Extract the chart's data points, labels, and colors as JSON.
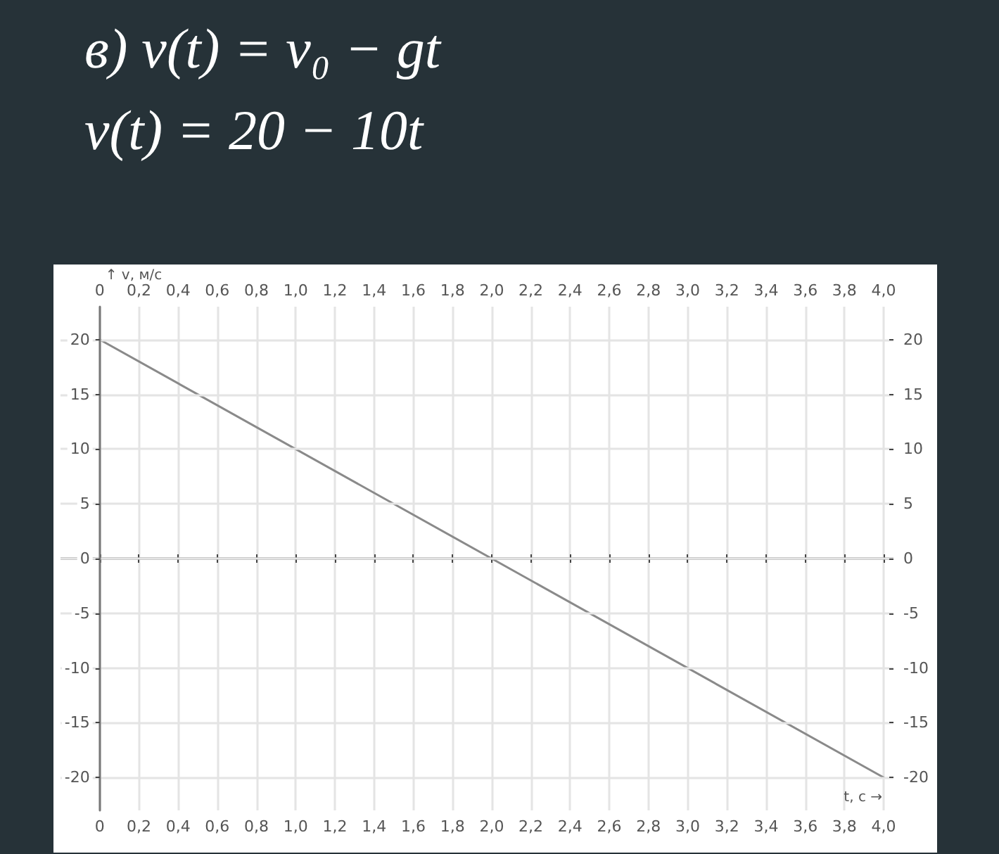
{
  "chart_data": {
    "type": "line",
    "title": "в) v(t) = v₀ − gt",
    "subtitle": "v(t) = 20 − 10t",
    "xlabel": "t, c →",
    "ylabel": "↑ v, м/с",
    "x": [
      0,
      4
    ],
    "series": [
      {
        "color": "#8a8a8a",
        "values": [
          20,
          -20
        ]
      }
    ],
    "xlim": [
      -0.2,
      4.05
    ],
    "ylim": [
      -23,
      23
    ],
    "xticks": [
      0,
      {
        "value": 0.2,
        "label": "0,2"
      },
      {
        "value": 0.4,
        "label": "0,4"
      },
      {
        "value": 0.6,
        "label": "0,6"
      },
      {
        "value": 0.8,
        "label": "0,8"
      },
      {
        "value": 1,
        "label": "1,0"
      },
      {
        "value": 1.2,
        "label": "1,2"
      },
      {
        "value": 1.4,
        "label": "1,4"
      },
      {
        "value": 1.6,
        "label": "1,6"
      },
      {
        "value": 1.8,
        "label": "1,8"
      },
      {
        "value": 2,
        "label": "2,0"
      },
      {
        "value": 2.2,
        "label": "2,2"
      },
      {
        "value": 2.4,
        "label": "2,4"
      },
      {
        "value": 2.6,
        "label": "2,6"
      },
      {
        "value": 2.8,
        "label": "2,8"
      },
      {
        "value": 3,
        "label": "3,0"
      },
      {
        "value": 3.2,
        "label": "3,2"
      },
      {
        "value": 3.4,
        "label": "3,4"
      },
      {
        "value": 3.6,
        "label": "3,6"
      },
      {
        "value": 3.8,
        "label": "3,8"
      },
      {
        "value": 4,
        "label": "4,0"
      }
    ],
    "x2lim": [
      -0.2,
      4.05
    ],
    "x2ticks": [
      0,
      {
        "value": 0.2,
        "label": "0,2"
      },
      {
        "value": 0.4,
        "label": "0,4"
      },
      {
        "value": 0.6,
        "label": "0,6"
      },
      {
        "value": 0.8,
        "label": "0,8"
      },
      {
        "value": 1,
        "label": "1,0"
      },
      {
        "value": 1.2,
        "label": "1,2"
      },
      {
        "value": 1.4,
        "label": "1,4"
      },
      {
        "value": 1.6,
        "label": "1,6"
      },
      {
        "value": 1.8,
        "label": "1,8"
      },
      {
        "value": 2,
        "label": "2,0"
      },
      {
        "value": 2.2,
        "label": "2,2"
      },
      {
        "value": 2.4,
        "label": "2,4"
      },
      {
        "value": 2.6,
        "label": "2,6"
      },
      {
        "value": 2.8,
        "label": "2,8"
      },
      {
        "value": 3,
        "label": "3,0"
      },
      {
        "value": 3.2,
        "label": "3,2"
      },
      {
        "value": 3.4,
        "label": "3,4"
      },
      {
        "value": 3.6,
        "label": "3,6"
      },
      {
        "value": 3.8,
        "label": "3,8"
      },
      {
        "value": 4,
        "label": "4,0"
      }
    ],
    "yticks": [
      -20,
      -15,
      -10,
      -5,
      0,
      5,
      10,
      15,
      20
    ],
    "y2lim": [
      -23,
      23
    ],
    "y2ticks": [
      -20,
      -15,
      -10,
      -5,
      0,
      5,
      10,
      15,
      20
    ],
    "ref_lines": [
      {
        "axis": "y",
        "value": 0,
        "color": "#666666"
      }
    ],
    "grid": true,
    "marker": "none",
    "line_style": "solid"
  }
}
